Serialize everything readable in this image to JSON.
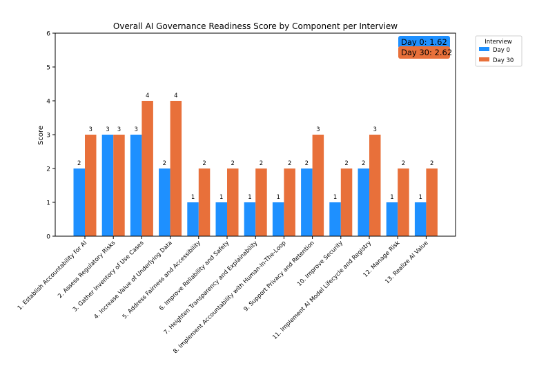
{
  "chart_data": {
    "type": "bar",
    "title": "Overall AI Governance Readiness Score by Component per Interview",
    "xlabel": "",
    "ylabel": "Score",
    "ylim": [
      0,
      6
    ],
    "yticks": [
      0,
      1,
      2,
      3,
      4,
      5,
      6
    ],
    "grid": false,
    "categories": [
      "1. Establish Accountability for AI",
      "2. Assess Regulatory Risks",
      "3. Gather Inventory of Use Cases",
      "4. Increase Value of Underlying Data",
      "5. Address Fairness and Accessibility",
      "6. Improve Reliability and Safety",
      "7. Heighten Transparency and Explainability",
      "8. Implement Accountability with Human-In-The-Loop",
      "9. Support Privacy and Retention",
      "10. Improve Security",
      "11. Implement AI Model Lifecycle and Registry",
      "12. Manage Risk",
      "13. Realize AI Value"
    ],
    "series": [
      {
        "name": "Day 0",
        "color": "#1E90FF",
        "values": [
          2,
          3,
          3,
          2,
          1,
          1,
          1,
          1,
          2,
          1,
          2,
          1,
          1
        ]
      },
      {
        "name": "Day 30",
        "color": "#E8703A",
        "values": [
          3,
          3,
          4,
          4,
          2,
          2,
          2,
          2,
          3,
          2,
          3,
          2,
          2
        ]
      }
    ],
    "legend": {
      "title": "Interview",
      "placement": "outside-top-right"
    },
    "averages": [
      {
        "label": "Day 0: 1.62",
        "color": "#1E90FF"
      },
      {
        "label": "Day 30: 2.62",
        "color": "#E8703A"
      }
    ]
  }
}
